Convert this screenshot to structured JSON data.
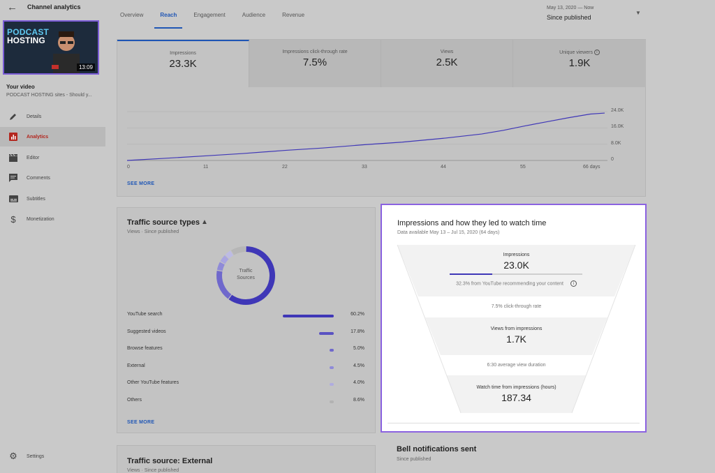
{
  "header": {
    "back_icon": "arrow-left-icon",
    "title": "Channel analytics",
    "tabs": [
      {
        "label": "Overview"
      },
      {
        "label": "Reach"
      },
      {
        "label": "Engagement"
      },
      {
        "label": "Audience"
      },
      {
        "label": "Revenue"
      }
    ],
    "active_tab": "Reach",
    "date_range": {
      "range": "May 13, 2020 — Now",
      "label": "Since published"
    }
  },
  "sidebar": {
    "thumbnail": {
      "line1": "PODCAST",
      "line2": "HOSTING",
      "duration": "13:09"
    },
    "your_video_label": "Your video",
    "video_title": "PODCAST HOSTING sites - Should y...",
    "items": [
      {
        "label": "Details",
        "icon": "pencil-icon"
      },
      {
        "label": "Analytics",
        "icon": "analytics-icon"
      },
      {
        "label": "Editor",
        "icon": "clapperboard-icon"
      },
      {
        "label": "Comments",
        "icon": "comments-icon"
      },
      {
        "label": "Subtitles",
        "icon": "subtitles-icon"
      },
      {
        "label": "Monetization",
        "icon": "dollar-icon"
      }
    ],
    "settings": {
      "label": "Settings",
      "icon": "gear-icon"
    }
  },
  "reach": {
    "metrics": [
      {
        "label": "Impressions",
        "value": "23.3K"
      },
      {
        "label": "Impressions click-through rate",
        "value": "7.5%"
      },
      {
        "label": "Views",
        "value": "2.5K"
      },
      {
        "label": "Unique viewers",
        "value": "1.9K"
      }
    ],
    "see_more": "SEE MORE"
  },
  "chart_data": {
    "type": "line",
    "title": "",
    "xlabel": "",
    "ylabel": "",
    "x_ticks": [
      "0",
      "11",
      "22",
      "33",
      "44",
      "55",
      "66 days"
    ],
    "y_ticks": [
      "24.0K",
      "16.0K",
      "8.0K",
      "0"
    ],
    "xlim": [
      0,
      66
    ],
    "ylim": [
      0,
      24000
    ],
    "series": [
      {
        "values_x": [
          0,
          5,
          11,
          16,
          22,
          27,
          33,
          38,
          44,
          49,
          52,
          55,
          58,
          61,
          64,
          66
        ],
        "values_y": [
          0,
          1000,
          2300,
          3400,
          5000,
          6100,
          7800,
          9000,
          11000,
          13000,
          14800,
          17000,
          19000,
          21000,
          22800,
          23300
        ]
      }
    ],
    "grid": true,
    "color": "#3f37b7"
  },
  "traffic": {
    "title": "Traffic source types",
    "warning_icon": "warning-triangle-icon",
    "subtitle": "Views · Since published",
    "donut_label_1": "Traffic",
    "donut_label_2": "Sources",
    "donut": [
      60.2,
      17.8,
      5.0,
      4.5,
      4.0,
      8.6
    ],
    "donut_colors": [
      "#3f37b7",
      "#6f68cc",
      "#8f8ad8",
      "#a9a5e0",
      "#bdbbe4",
      "#b6b6b6"
    ],
    "rows": [
      {
        "name": "YouTube search",
        "pct": "60.2%",
        "value": 60.2
      },
      {
        "name": "Suggested videos",
        "pct": "17.8%",
        "value": 17.8
      },
      {
        "name": "Browse features",
        "pct": "5.0%",
        "value": 5.0
      },
      {
        "name": "External",
        "pct": "4.5%",
        "value": 4.5
      },
      {
        "name": "Other YouTube features",
        "pct": "4.0%",
        "value": 4.0
      },
      {
        "name": "Others",
        "pct": "8.6%",
        "value": 8.6
      }
    ],
    "see_more": "SEE MORE"
  },
  "funnel": {
    "title": "Impressions and how they led to watch time",
    "subtitle": "Data available May 13 – Jul 15, 2020 (64 days)",
    "impressions_label": "Impressions",
    "impressions_value": "23.0K",
    "impressions_progress": 0.323,
    "recommend_note": "32.3% from YouTube recommending your content",
    "info_icon": "info-icon",
    "ctr_note": "7.5% click-through rate",
    "views_label": "Views from impressions",
    "views_value": "1.7K",
    "duration_note": "6:30 average view duration",
    "watch_label": "Watch time from impressions (hours)",
    "watch_value": "187.34"
  },
  "bell": {
    "title": "Bell notifications sent",
    "subtitle": "Since published"
  },
  "external": {
    "title": "Traffic source: External",
    "subtitle": "Views · Since published"
  }
}
